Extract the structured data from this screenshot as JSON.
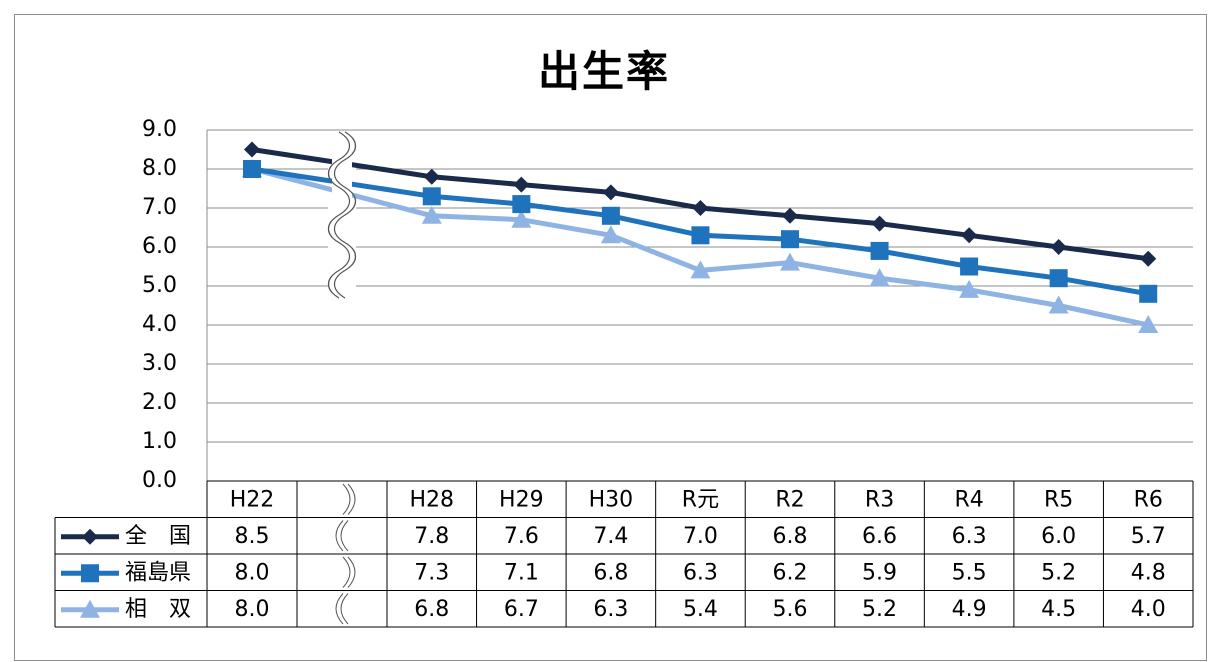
{
  "chart_data": {
    "type": "line",
    "title": "出生率",
    "categories": [
      "H22",
      "H28",
      "H29",
      "H30",
      "R元",
      "R2",
      "R3",
      "R4",
      "R5",
      "R6"
    ],
    "ylim": [
      0,
      9
    ],
    "yticks": [
      "0.0",
      "1.0",
      "2.0",
      "3.0",
      "4.0",
      "5.0",
      "6.0",
      "7.0",
      "8.0",
      "9.0"
    ],
    "grid": true,
    "axis_break": "between H22 and H28",
    "data_table": true,
    "series": [
      {
        "name": "全　国",
        "color": "#1a2a4a",
        "marker": "diamond",
        "values": [
          8.5,
          7.8,
          7.6,
          7.4,
          7.0,
          6.8,
          6.6,
          6.3,
          6.0,
          5.7
        ],
        "labels": [
          "8.5",
          "7.8",
          "7.6",
          "7.4",
          "7.0",
          "6.8",
          "6.6",
          "6.3",
          "6.0",
          "5.7"
        ]
      },
      {
        "name": "福島県",
        "color": "#1f73bd",
        "marker": "square",
        "values": [
          8.0,
          7.3,
          7.1,
          6.8,
          6.3,
          6.2,
          5.9,
          5.5,
          5.2,
          4.8
        ],
        "labels": [
          "8.0",
          "7.3",
          "7.1",
          "6.8",
          "6.3",
          "6.2",
          "5.9",
          "5.5",
          "5.2",
          "4.8"
        ]
      },
      {
        "name": "相　双",
        "color": "#8fb4e3",
        "marker": "triangle",
        "values": [
          8.0,
          6.8,
          6.7,
          6.3,
          5.4,
          5.6,
          5.2,
          4.9,
          4.5,
          4.0
        ],
        "labels": [
          "8.0",
          "6.8",
          "6.7",
          "6.3",
          "5.4",
          "5.6",
          "5.2",
          "4.9",
          "4.5",
          "4.0"
        ]
      }
    ]
  }
}
